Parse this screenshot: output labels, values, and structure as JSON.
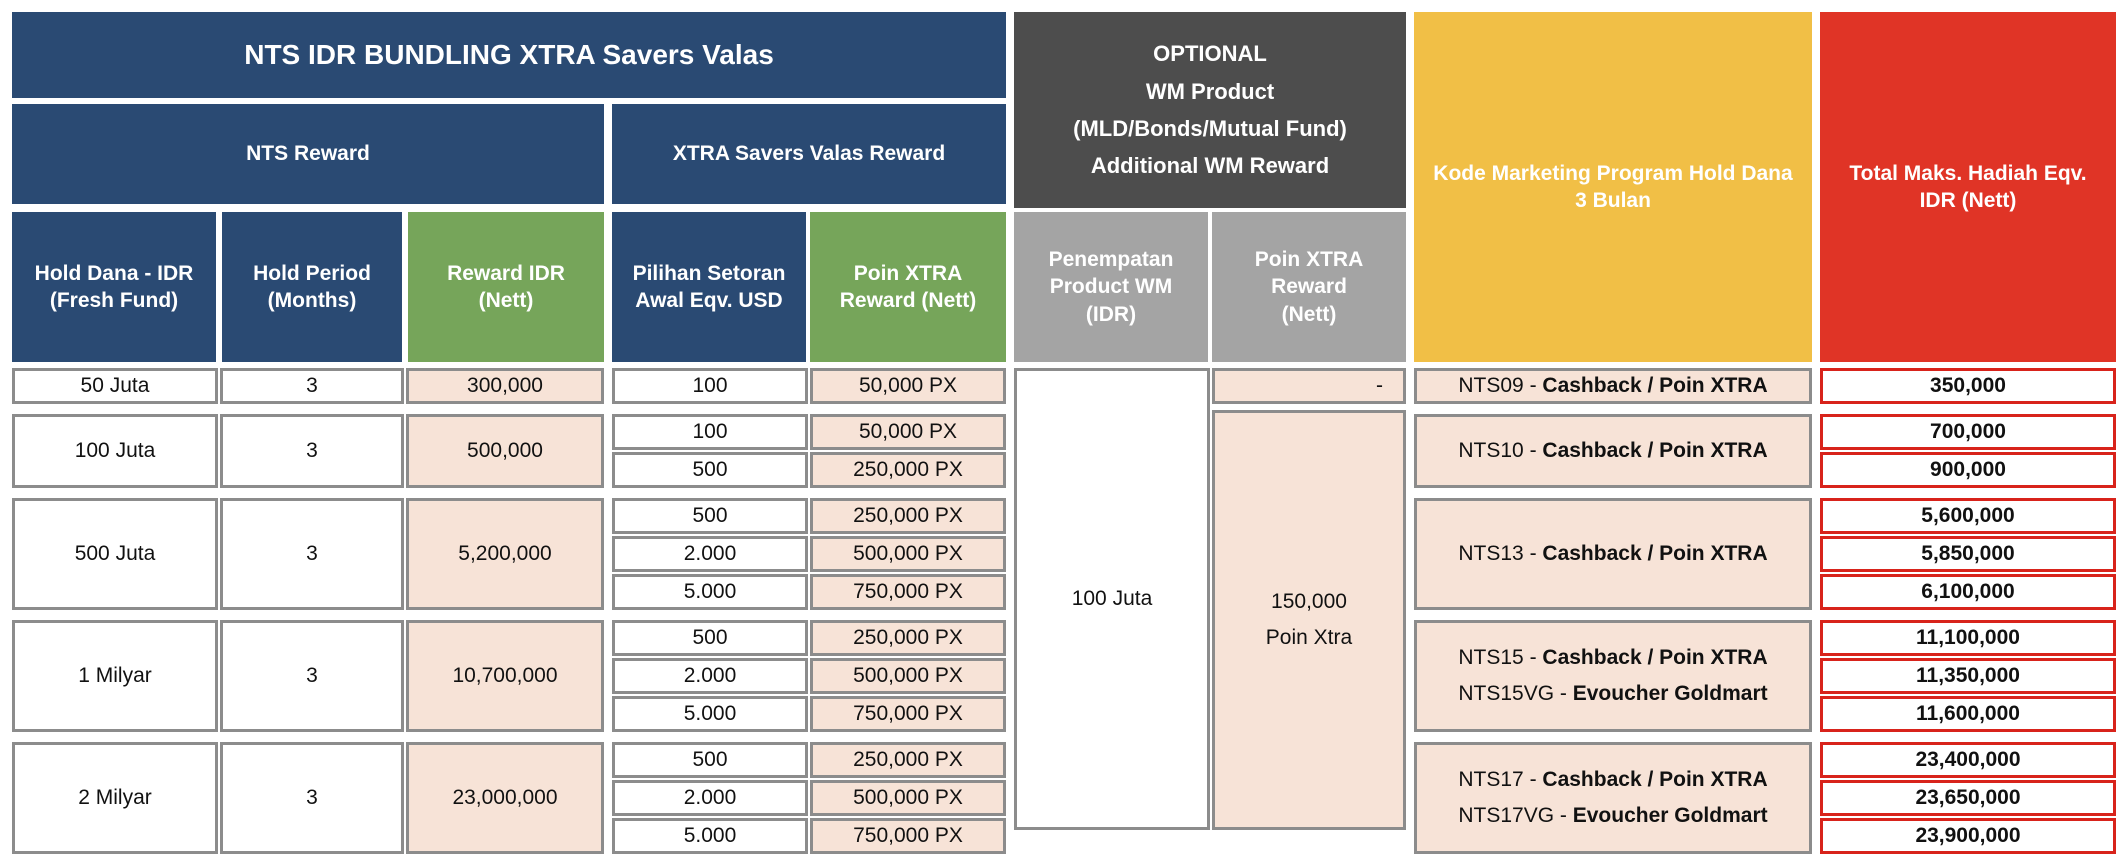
{
  "banner": {
    "nts_title": "NTS IDR BUNDLING XTRA Savers Valas",
    "optional_title": "OPTIONAL",
    "wm_title_1": "WM Product",
    "wm_title_2": "(MLD/Bonds/Mutual Fund)",
    "wm_title_3": "Additional WM Reward",
    "kode_title": "Kode Marketing Program Hold Dana 3 Bulan",
    "total_title": "Total Maks. Hadiah Eqv. IDR (Nett)"
  },
  "groups": {
    "nts_reward": "NTS Reward",
    "xtra_reward": "XTRA Savers Valas Reward"
  },
  "columns": {
    "hold_dana": "Hold Dana - IDR (Fresh Fund)",
    "hold_period": "Hold Period (Months)",
    "reward_idr": "Reward IDR (Nett)",
    "pilihan": "Pilihan Setoran Awal Eqv. USD",
    "poin_xtra": "Poin XTRA Reward (Nett)",
    "penempatan": "Penempatan Product WM (IDR)",
    "poin_xtra_wm": "Poin XTRA Reward (Nett)"
  },
  "groups_rows": [
    {
      "hold_dana": "50 Juta",
      "period": "3",
      "reward": "300,000",
      "options": [
        {
          "usd": "100",
          "poin": "50,000 PX",
          "total": "350,000"
        }
      ],
      "code1": "NTS09",
      "code1_desc": "Cashback / Poin XTRA",
      "code2": "",
      "code2_desc": ""
    },
    {
      "hold_dana": "100 Juta",
      "period": "3",
      "reward": "500,000",
      "options": [
        {
          "usd": "100",
          "poin": "50,000 PX",
          "total": "700,000"
        },
        {
          "usd": "500",
          "poin": "250,000 PX",
          "total": "900,000"
        }
      ],
      "code1": "NTS10",
      "code1_desc": "Cashback / Poin XTRA",
      "code2": "",
      "code2_desc": ""
    },
    {
      "hold_dana": "500 Juta",
      "period": "3",
      "reward": "5,200,000",
      "options": [
        {
          "usd": "500",
          "poin": "250,000 PX",
          "total": "5,600,000"
        },
        {
          "usd": "2.000",
          "poin": "500,000 PX",
          "total": "5,850,000"
        },
        {
          "usd": "5.000",
          "poin": "750,000 PX",
          "total": "6,100,000"
        }
      ],
      "code1": "NTS13",
      "code1_desc": "Cashback / Poin XTRA",
      "code2": "",
      "code2_desc": ""
    },
    {
      "hold_dana": "1 Milyar",
      "period": "3",
      "reward": "10,700,000",
      "options": [
        {
          "usd": "500",
          "poin": "250,000 PX",
          "total": "11,100,000"
        },
        {
          "usd": "2.000",
          "poin": "500,000 PX",
          "total": "11,350,000"
        },
        {
          "usd": "5.000",
          "poin": "750,000 PX",
          "total": "11,600,000"
        }
      ],
      "code1": "NTS15",
      "code1_desc": "Cashback / Poin XTRA",
      "code2": "NTS15VG",
      "code2_desc": "Evoucher Goldmart"
    },
    {
      "hold_dana": "2 Milyar",
      "period": "3",
      "reward": "23,000,000",
      "options": [
        {
          "usd": "500",
          "poin": "250,000 PX",
          "total": "23,400,000"
        },
        {
          "usd": "2.000",
          "poin": "500,000 PX",
          "total": "23,650,000"
        },
        {
          "usd": "5.000",
          "poin": "750,000 PX",
          "total": "23,900,000"
        }
      ],
      "code1": "NTS17",
      "code1_desc": "Cashback / Poin XTRA",
      "code2": "NTS17VG",
      "code2_desc": "Evoucher Goldmart"
    }
  ],
  "wm": {
    "dash": "-",
    "penempatan_value": "100 Juta",
    "poin_value_1": "150,000",
    "poin_value_2": "Poin Xtra"
  },
  "colors": {
    "header_blue": "#2a4a73",
    "header_green": "#76a55a",
    "header_dark": "#4d4d4d",
    "header_grey": "#a4a4a4",
    "header_yellow": "#f1bf46",
    "header_red": "#e03426",
    "cell_peach": "#f7e3d7"
  }
}
